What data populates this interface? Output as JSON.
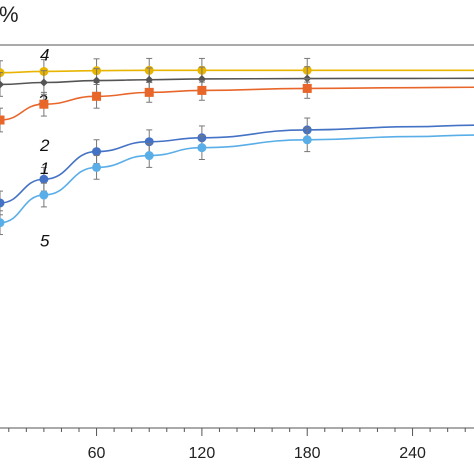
{
  "chart_data": {
    "type": "line",
    "ylabel": "%",
    "xlabel": "",
    "xlim": [
      5,
      275
    ],
    "ylim": [
      3,
      100
    ],
    "x_ticks": [
      60,
      120,
      180,
      240
    ],
    "grid": false,
    "series": [
      {
        "name": "4",
        "color": "#e8b400",
        "marker": "circle",
        "x": [
          5,
          30,
          60,
          90,
          120,
          180
        ],
        "y": [
          93,
          93.3,
          93.5,
          93.6,
          93.6,
          93.6
        ],
        "err": [
          3,
          3,
          3,
          3,
          3,
          3
        ]
      },
      {
        "name": "3",
        "color": "#555555",
        "marker": "diamond",
        "x": [
          5,
          30,
          60,
          90,
          120,
          180
        ],
        "y": [
          90,
          90.5,
          91,
          91.2,
          91.4,
          91.5
        ],
        "err": [
          3,
          3,
          3,
          3,
          3,
          3
        ]
      },
      {
        "name": "2",
        "color": "#e8662a",
        "marker": "square",
        "x": [
          5,
          30,
          60,
          90,
          120,
          180
        ],
        "y": [
          81,
          85,
          87,
          88,
          88.5,
          89
        ],
        "err": [
          3,
          3,
          3,
          2.5,
          2.5,
          2.5
        ]
      },
      {
        "name": "1",
        "color": "#4472c4",
        "marker": "circle",
        "x": [
          5,
          30,
          60,
          90,
          120,
          180
        ],
        "y": [
          60,
          66,
          73,
          75.5,
          76.5,
          78.5
        ],
        "err": [
          3,
          3,
          3,
          3,
          3,
          3
        ]
      },
      {
        "name": "5",
        "color": "#5aaee8",
        "marker": "circle",
        "x": [
          5,
          30,
          60,
          90,
          120,
          180
        ],
        "y": [
          55,
          62,
          69,
          72,
          74,
          76
        ],
        "err": [
          3,
          3,
          3,
          3,
          3,
          3
        ]
      }
    ]
  }
}
